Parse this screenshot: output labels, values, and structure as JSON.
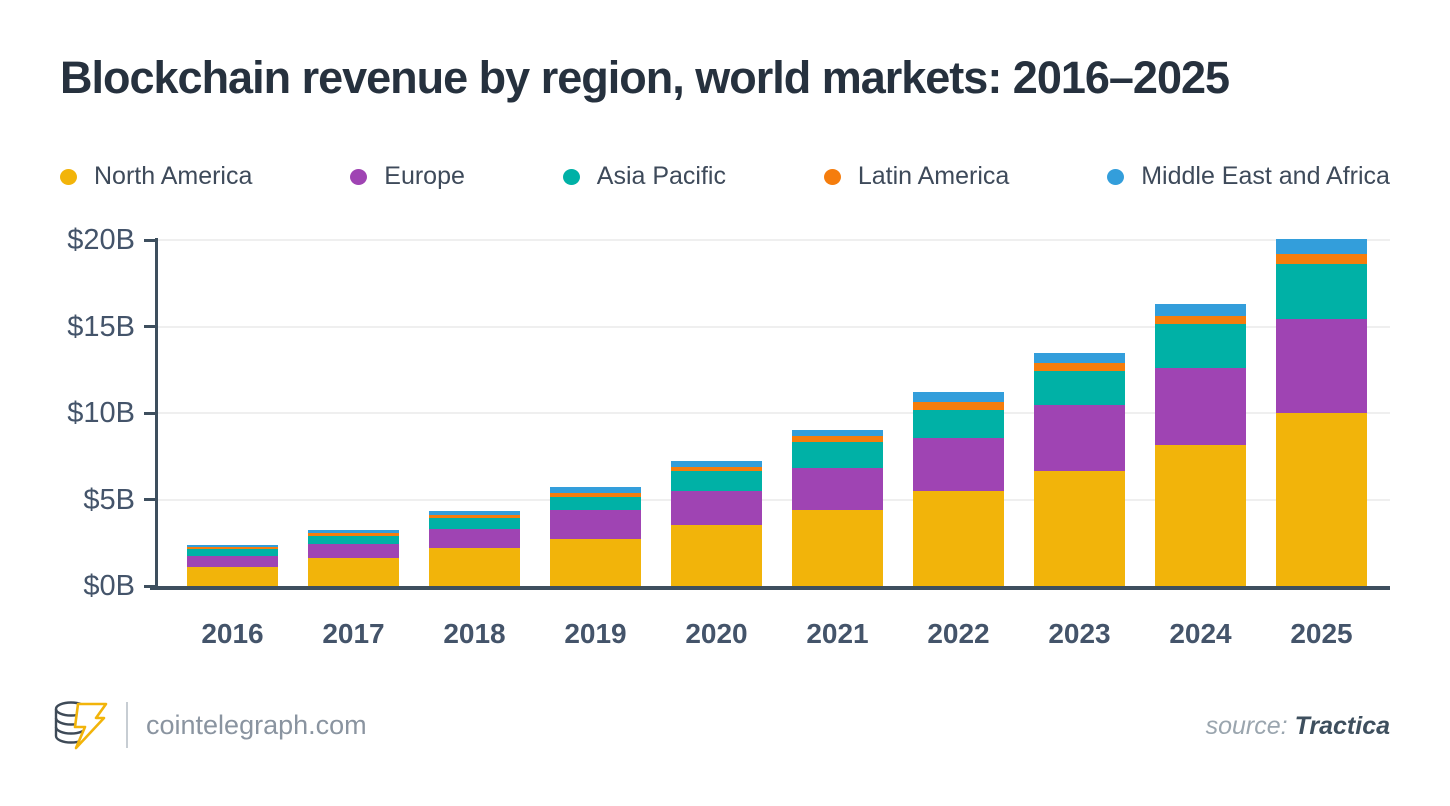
{
  "title": "Blockchain revenue by region, world markets: 2016–2025",
  "legend": [
    {
      "label": "North America",
      "color": "#F2B40A"
    },
    {
      "label": "Europe",
      "color": "#9F44B3"
    },
    {
      "label": "Asia Pacific",
      "color": "#00B1A6"
    },
    {
      "label": "Latin America",
      "color": "#F57D0D"
    },
    {
      "label": "Middle East and Africa",
      "color": "#339EDB"
    }
  ],
  "chart_data": {
    "type": "bar",
    "stacked": true,
    "title": "Blockchain revenue by region, world markets: 2016–2025",
    "categories": [
      "2016",
      "2017",
      "2018",
      "2019",
      "2020",
      "2021",
      "2022",
      "2023",
      "2024",
      "2025"
    ],
    "series": [
      {
        "name": "North America",
        "color": "#F2B40A",
        "values": [
          1.1,
          1.6,
          2.17,
          2.7,
          3.5,
          4.4,
          5.5,
          6.65,
          8.18,
          10.0
        ]
      },
      {
        "name": "Europe",
        "color": "#9F44B3",
        "values": [
          0.65,
          0.85,
          1.15,
          1.7,
          2.0,
          2.45,
          3.07,
          3.8,
          4.42,
          5.43
        ]
      },
      {
        "name": "Asia Pacific",
        "color": "#00B1A6",
        "values": [
          0.4,
          0.45,
          0.63,
          0.77,
          1.15,
          1.5,
          1.6,
          2.0,
          2.54,
          3.18
        ]
      },
      {
        "name": "Latin America",
        "color": "#F57D0D",
        "values": [
          0.1,
          0.14,
          0.14,
          0.2,
          0.25,
          0.33,
          0.46,
          0.42,
          0.46,
          0.58
        ]
      },
      {
        "name": "Middle East and Africa",
        "color": "#339EDB",
        "values": [
          0.15,
          0.17,
          0.26,
          0.38,
          0.3,
          0.33,
          0.58,
          0.58,
          0.73,
          0.88
        ]
      }
    ],
    "xlabel": "",
    "ylabel": "",
    "ylim": [
      0,
      20
    ],
    "y_ticks": [
      {
        "label": "$0B",
        "value": 0
      },
      {
        "label": "$5B",
        "value": 5
      },
      {
        "label": "$10B",
        "value": 10
      },
      {
        "label": "$15B",
        "value": 15
      },
      {
        "label": "$20B",
        "value": 20
      }
    ],
    "grid": true,
    "legend_position": "top"
  },
  "footer": {
    "site": "cointelegraph.com",
    "source_label": "source:",
    "source_value": "Tractica"
  },
  "colors": {
    "title_text": "#26313E",
    "axis": "#3E4F5E",
    "axis_label": "#44546A",
    "gridline": "#EFEFEF",
    "legend_text": "#3E4A5A",
    "footer_site_text": "#8A94A0",
    "logo_accent": "#F2B40A"
  }
}
